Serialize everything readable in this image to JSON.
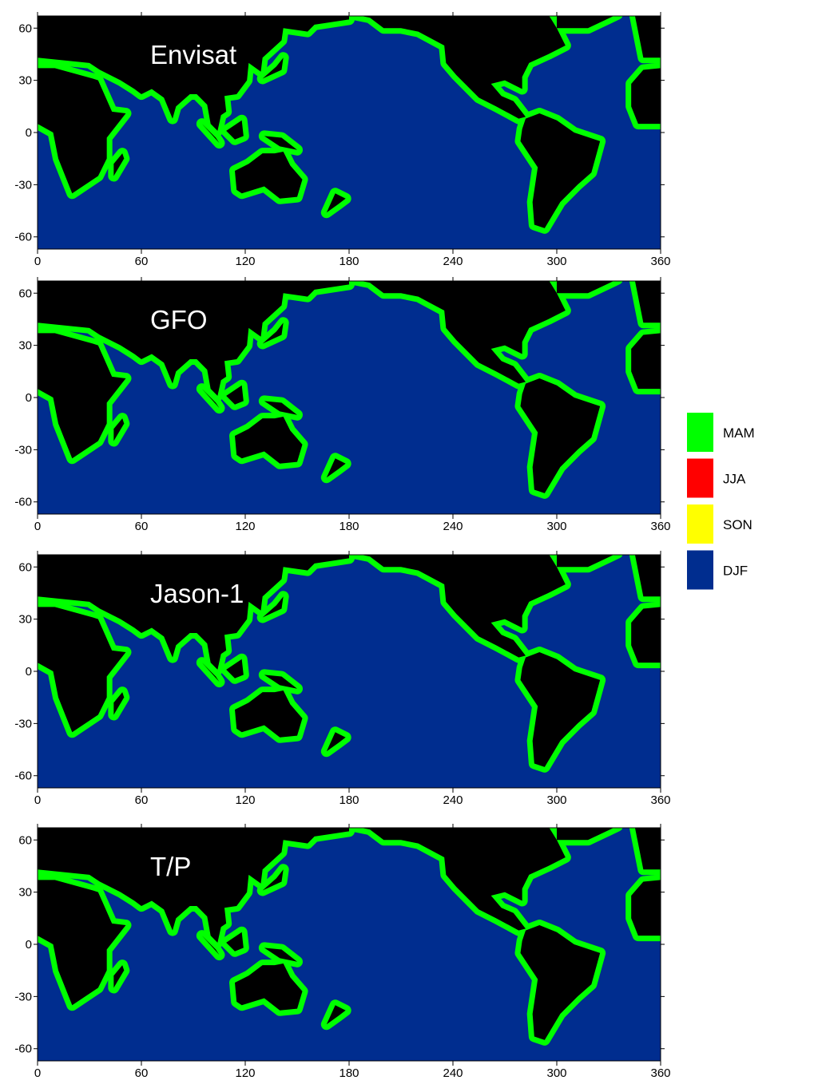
{
  "panels": [
    {
      "title": "Envisat",
      "xlim": [
        0,
        360
      ],
      "xticks": [
        0,
        60,
        120,
        180,
        240,
        300,
        360
      ],
      "ylim": [
        -67,
        67
      ],
      "yticks": [
        60,
        30,
        0,
        -30,
        -60
      ]
    },
    {
      "title": "GFO",
      "xlim": [
        0,
        360
      ],
      "xticks": [
        0,
        60,
        120,
        180,
        240,
        300,
        360
      ],
      "ylim": [
        -67,
        67
      ],
      "yticks": [
        60,
        30,
        0,
        -30,
        -60
      ]
    },
    {
      "title": "Jason-1",
      "xlim": [
        0,
        360
      ],
      "xticks": [
        0,
        60,
        120,
        180,
        240,
        300,
        360
      ],
      "ylim": [
        -67,
        67
      ],
      "yticks": [
        60,
        30,
        0,
        -30,
        -60
      ]
    },
    {
      "title": "T/P",
      "xlim": [
        0,
        360
      ],
      "xticks": [
        0,
        60,
        120,
        180,
        240,
        300,
        360
      ],
      "ylim": [
        -67,
        67
      ],
      "yticks": [
        60,
        30,
        0,
        -30,
        -60
      ]
    }
  ],
  "legend": [
    {
      "label": "MAM",
      "color": "#00ff00"
    },
    {
      "label": "JJA",
      "color": "#ff0000"
    },
    {
      "label": "SON",
      "color": "#ffff00"
    },
    {
      "label": "DJF",
      "color": "#002d8f"
    }
  ]
}
